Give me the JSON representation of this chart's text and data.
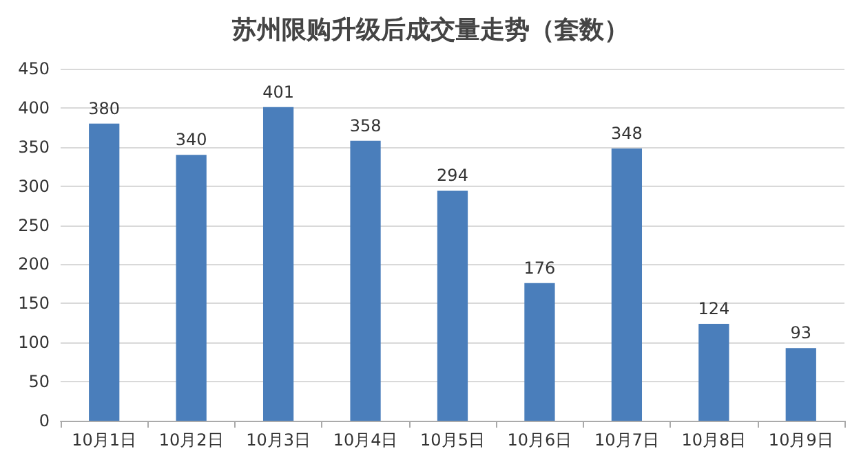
{
  "chart_data": {
    "type": "bar",
    "title": "苏州限购升级后成交量走势（套数）",
    "categories": [
      "10月1日",
      "10月2日",
      "10月3日",
      "10月4日",
      "10月5日",
      "10月6日",
      "10月7日",
      "10月8日",
      "10月9日"
    ],
    "values": [
      380,
      340,
      401,
      358,
      294,
      176,
      348,
      124,
      93
    ],
    "color": "#4a7ebb",
    "ylim": [
      0,
      450
    ],
    "yticks": [
      0,
      50,
      100,
      150,
      200,
      250,
      300,
      350,
      400,
      450
    ],
    "grid": "y",
    "data_labels": true
  }
}
